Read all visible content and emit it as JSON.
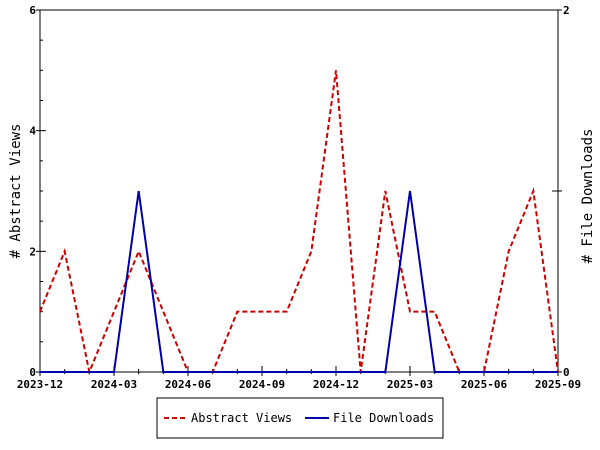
{
  "chart_data": {
    "type": "line",
    "x_tick_labels": [
      "2023-12",
      "2024-03",
      "2024-06",
      "2024-09",
      "2024-12",
      "2025-03",
      "2025-06",
      "2025-09"
    ],
    "x": [
      "2023-12",
      "2024-01",
      "2024-02",
      "2024-03",
      "2024-04",
      "2024-05",
      "2024-06",
      "2024-07",
      "2024-08",
      "2024-09",
      "2024-10",
      "2024-11",
      "2024-12",
      "2025-01",
      "2025-02",
      "2025-03",
      "2025-04",
      "2025-05",
      "2025-06",
      "2025-07",
      "2025-08",
      "2025-09"
    ],
    "series": [
      {
        "name": "Abstract Views",
        "axis": "left",
        "color": "#cc0000",
        "style": "dashed",
        "values": [
          1,
          2,
          0,
          1,
          2,
          1,
          0,
          0,
          1,
          1,
          1,
          2,
          5,
          0,
          3,
          1,
          1,
          0,
          0,
          2,
          3,
          0
        ]
      },
      {
        "name": "File Downloads",
        "axis": "right",
        "color": "#0000aa",
        "style": "solid",
        "values": [
          0,
          0,
          0,
          0,
          1,
          0,
          0,
          0,
          0,
          0,
          0,
          0,
          0,
          0,
          0,
          1,
          0,
          0,
          0,
          0,
          0,
          0
        ]
      }
    ],
    "ylabel_left": "# Abstract Views",
    "ylabel_right": "# File Downloads",
    "ylim_left": [
      0,
      6
    ],
    "ylim_right": [
      0,
      2
    ],
    "y_ticks_left": [
      "0",
      "2",
      "4",
      "6"
    ],
    "y_ticks_right": [
      "0",
      "1",
      "2"
    ],
    "legend_placement": "bottom-center",
    "grid": false
  }
}
